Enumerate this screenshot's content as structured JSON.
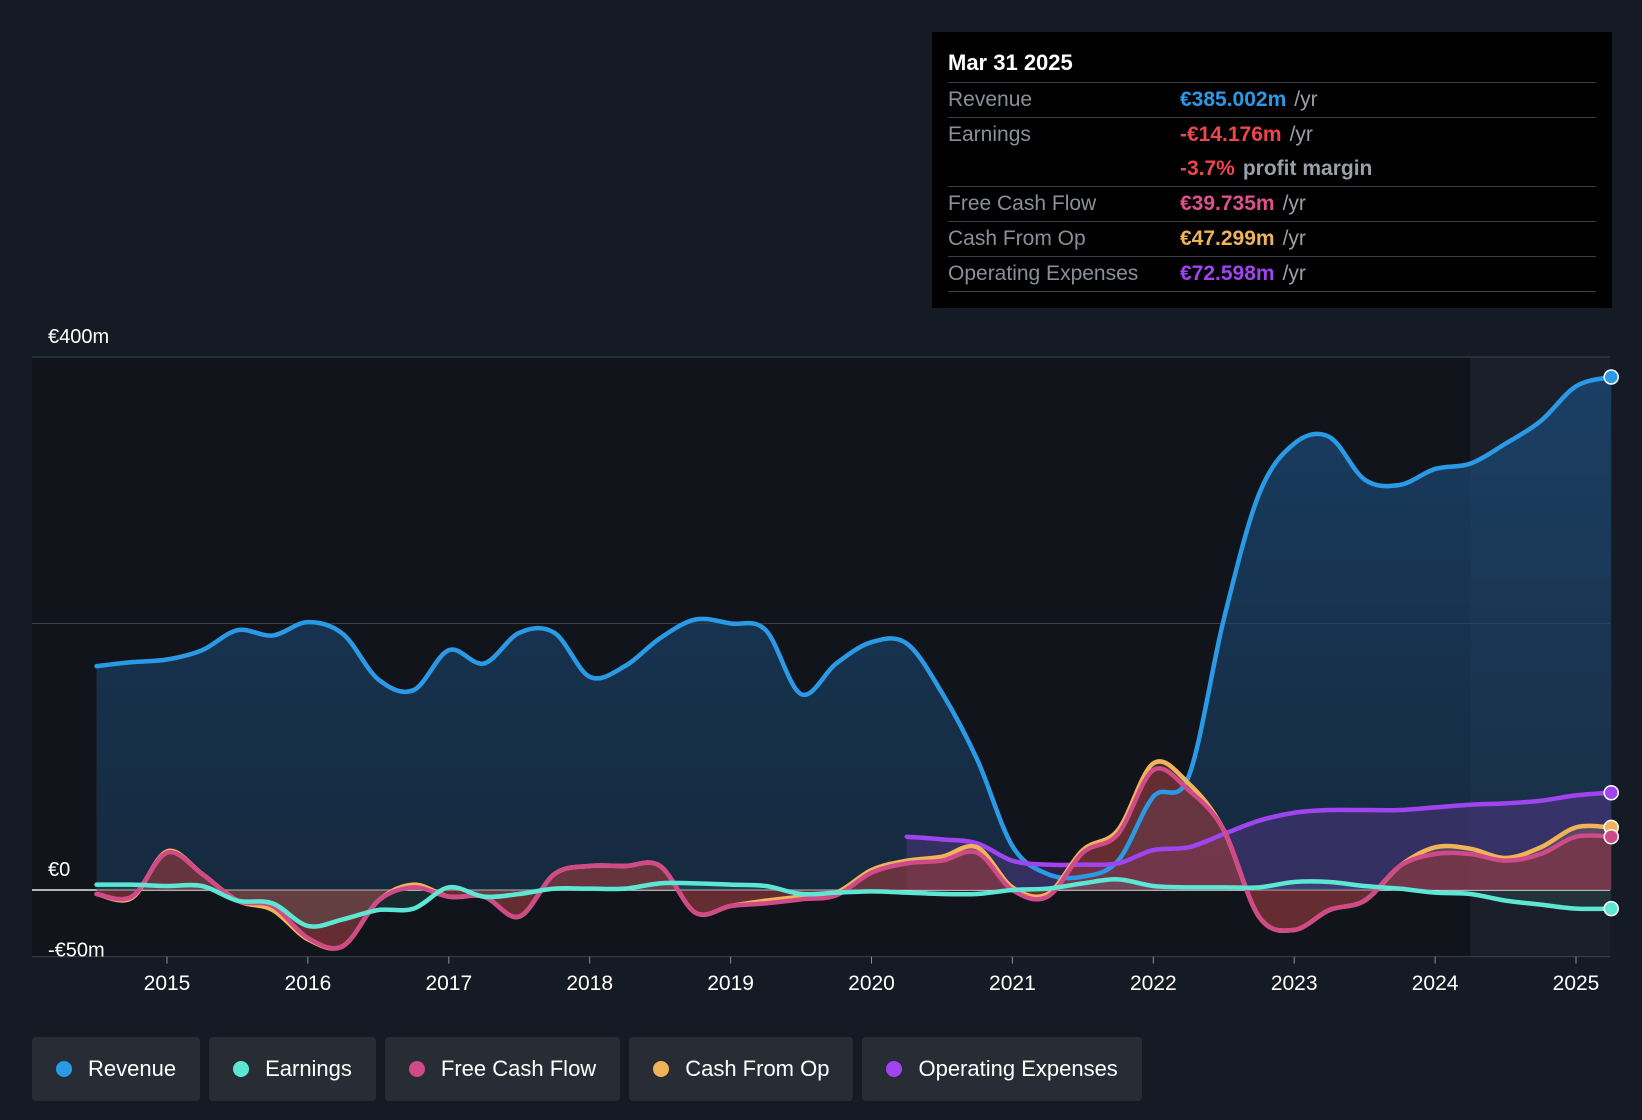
{
  "tooltip": {
    "date": "Mar 31 2025",
    "rows": {
      "revenue": {
        "label": "Revenue",
        "value": "€385.002m",
        "unit": "/yr",
        "color": "#2a9ae6"
      },
      "earnings": {
        "label": "Earnings",
        "value": "-€14.176m",
        "unit": "/yr",
        "color": "#f0454d"
      },
      "margin": {
        "value": "-3.7%",
        "text": "profit margin",
        "color": "#f0454d"
      },
      "fcf": {
        "label": "Free Cash Flow",
        "value": "€39.735m",
        "unit": "/yr",
        "color": "#e0508c"
      },
      "cfo": {
        "label": "Cash From Op",
        "value": "€47.299m",
        "unit": "/yr",
        "color": "#f0b35a"
      },
      "opex": {
        "label": "Operating Expenses",
        "value": "€72.598m",
        "unit": "/yr",
        "color": "#a044f0"
      }
    }
  },
  "legend": [
    {
      "label": "Revenue",
      "color": "#2a9ae6"
    },
    {
      "label": "Earnings",
      "color": "#5ee6d4"
    },
    {
      "label": "Free Cash Flow",
      "color": "#d04a8a"
    },
    {
      "label": "Cash From Op",
      "color": "#f0b35a"
    },
    {
      "label": "Operating Expenses",
      "color": "#a044f0"
    }
  ],
  "chart_data": {
    "type": "line",
    "title": "",
    "xlabel": "",
    "ylabel": "",
    "y_tick_labels": [
      {
        "value": 400,
        "label": "€400m"
      },
      {
        "value": 0,
        "label": "€0"
      },
      {
        "value": -50,
        "label": "-€50m"
      }
    ],
    "gridlines": [
      400,
      200,
      0
    ],
    "ylim": [
      -50,
      400
    ],
    "xlim": [
      2014.5,
      2025.25
    ],
    "x_ticks": [
      2015,
      2016,
      2017,
      2018,
      2019,
      2020,
      2021,
      2022,
      2023,
      2024,
      2025
    ],
    "x_tick_labels": [
      "2015",
      "2016",
      "2017",
      "2018",
      "2019",
      "2020",
      "2021",
      "2022",
      "2023",
      "2024",
      "2025"
    ],
    "highlight_from": 2024.25,
    "series": [
      {
        "name": "Revenue",
        "color": "#2a9ae6",
        "x": [
          2014.5,
          2014.75,
          2015.0,
          2015.25,
          2015.5,
          2015.75,
          2016.0,
          2016.25,
          2016.5,
          2016.75,
          2017.0,
          2017.25,
          2017.5,
          2017.75,
          2018.0,
          2018.25,
          2018.5,
          2018.75,
          2019.0,
          2019.25,
          2019.5,
          2019.75,
          2020.0,
          2020.25,
          2020.5,
          2020.75,
          2021.0,
          2021.25,
          2021.5,
          2021.75,
          2022.0,
          2022.25,
          2022.5,
          2022.75,
          2023.0,
          2023.25,
          2023.5,
          2023.75,
          2024.0,
          2024.25,
          2024.5,
          2024.75,
          2025.0,
          2025.25
        ],
        "y": [
          168,
          171,
          173,
          180,
          195,
          191,
          201,
          192,
          158,
          150,
          180,
          170,
          193,
          193,
          160,
          168,
          189,
          203,
          200,
          195,
          147,
          170,
          186,
          185,
          148,
          98,
          33,
          12,
          10,
          22,
          70,
          85,
          203,
          297,
          335,
          340,
          308,
          304,
          316,
          320,
          335,
          352,
          378,
          385
        ]
      },
      {
        "name": "Earnings",
        "color": "#5ee6d4",
        "x": [
          2014.5,
          2014.75,
          2015.0,
          2015.25,
          2015.5,
          2015.75,
          2016.0,
          2016.25,
          2016.5,
          2016.75,
          2017.0,
          2017.25,
          2017.5,
          2017.75,
          2018.0,
          2018.25,
          2018.5,
          2018.75,
          2019.0,
          2019.25,
          2019.5,
          2019.75,
          2020.0,
          2020.25,
          2020.5,
          2020.75,
          2021.0,
          2021.25,
          2021.5,
          2021.75,
          2022.0,
          2022.25,
          2022.5,
          2022.75,
          2023.0,
          2023.25,
          2023.5,
          2023.75,
          2024.0,
          2024.25,
          2024.5,
          2024.75,
          2025.0,
          2025.25
        ],
        "y": [
          4,
          4,
          3,
          3,
          -8,
          -10,
          -27,
          -22,
          -15,
          -14,
          2,
          -5,
          -3,
          1,
          1,
          1,
          5,
          5,
          4,
          3,
          -3,
          -2,
          -1,
          -2,
          -3,
          -3,
          0,
          1,
          5,
          8,
          3,
          2,
          2,
          2,
          6,
          6,
          3,
          1,
          -2,
          -3,
          -8,
          -11,
          -14,
          -14
        ]
      },
      {
        "name": "Free Cash Flow",
        "color": "#d04a8a",
        "x": [
          2014.5,
          2014.75,
          2015.0,
          2015.25,
          2015.5,
          2015.75,
          2016.0,
          2016.25,
          2016.5,
          2016.75,
          2017.0,
          2017.25,
          2017.5,
          2017.75,
          2018.0,
          2018.25,
          2018.5,
          2018.75,
          2019.0,
          2019.25,
          2019.5,
          2019.75,
          2020.0,
          2020.25,
          2020.5,
          2020.75,
          2021.0,
          2021.25,
          2021.5,
          2021.75,
          2022.0,
          2022.25,
          2022.5,
          2022.75,
          2023.0,
          2023.25,
          2023.5,
          2023.75,
          2024.0,
          2024.25,
          2024.5,
          2024.75,
          2025.0,
          2025.25
        ],
        "y": [
          -3,
          -5,
          28,
          12,
          -8,
          -12,
          -36,
          -42,
          -8,
          2,
          -5,
          -5,
          -20,
          12,
          18,
          18,
          18,
          -17,
          -12,
          -10,
          -7,
          -4,
          13,
          20,
          22,
          28,
          0,
          -5,
          28,
          42,
          90,
          75,
          45,
          -20,
          -30,
          -15,
          -8,
          18,
          27,
          27,
          22,
          27,
          40,
          40
        ]
      },
      {
        "name": "Cash From Op",
        "color": "#f0b35a",
        "x": [
          2014.5,
          2014.75,
          2015.0,
          2015.25,
          2015.5,
          2015.75,
          2016.0,
          2016.25,
          2016.5,
          2016.75,
          2017.0,
          2017.25,
          2017.5,
          2017.75,
          2018.0,
          2018.25,
          2018.5,
          2018.75,
          2019.0,
          2019.25,
          2019.5,
          2019.75,
          2020.0,
          2020.25,
          2020.5,
          2020.75,
          2021.0,
          2021.25,
          2021.5,
          2021.75,
          2022.0,
          2022.25,
          2022.5,
          2022.75,
          2023.0,
          2023.25,
          2023.5,
          2023.75,
          2024.0,
          2024.25,
          2024.5,
          2024.75,
          2025.0,
          2025.25
        ],
        "y": [
          -3,
          -6,
          29,
          12,
          -8,
          -15,
          -37,
          -42,
          -8,
          4,
          -5,
          -5,
          -20,
          12,
          18,
          18,
          18,
          -17,
          -12,
          -8,
          -5,
          -2,
          15,
          22,
          25,
          32,
          2,
          -3,
          30,
          45,
          95,
          80,
          45,
          -20,
          -30,
          -15,
          -8,
          18,
          32,
          31,
          24,
          32,
          47,
          47
        ]
      },
      {
        "name": "Operating Expenses",
        "color": "#a044f0",
        "x": [
          2020.25,
          2020.5,
          2020.75,
          2021.0,
          2021.25,
          2021.5,
          2021.75,
          2022.0,
          2022.25,
          2022.5,
          2022.75,
          2023.0,
          2023.25,
          2023.5,
          2023.75,
          2024.0,
          2024.25,
          2024.5,
          2024.75,
          2025.0,
          2025.25
        ],
        "y": [
          40,
          38,
          35,
          22,
          19,
          19,
          20,
          30,
          32,
          42,
          52,
          58,
          60,
          60,
          60,
          62,
          64,
          65,
          67,
          71,
          73
        ]
      }
    ]
  }
}
